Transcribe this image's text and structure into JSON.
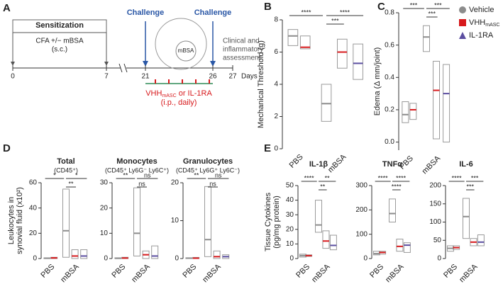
{
  "panel_labels": [
    "A",
    "B",
    "C",
    "D",
    "E"
  ],
  "diagram": {
    "sensitization": "Sensitization",
    "treatment": "CFA +/− mBSA",
    "route": "(s.c.)",
    "challenge": [
      "Challenge",
      "Challenge"
    ],
    "antigen": "mBSA",
    "assessment": [
      "Clinical and",
      "inflammatory",
      "assessment"
    ],
    "days": [
      0,
      7,
      21,
      26,
      27
    ],
    "days_label": "Days",
    "drug": {
      "name": "VHH",
      "sub": "mASC",
      "rest": " or IL-1RA"
    },
    "dosing": "(i.p., daily)"
  },
  "chart_data": [
    {
      "type": "box",
      "ylabel": [
        "Mechanical Threshold (g)"
      ],
      "categories": [
        "PBS",
        "mBSA"
      ],
      "ylim": [
        0,
        8
      ],
      "yticks": [
        0,
        2,
        4,
        6,
        8
      ],
      "series": [
        {
          "color": "#8c8c8c",
          "min": [
            6.4,
            1.7
          ],
          "median": [
            7.0,
            2.8
          ],
          "max": [
            7.4,
            4.0
          ]
        },
        {
          "color": "#d7191c",
          "min": [
            6.2,
            5.0
          ],
          "median": [
            6.3,
            6.0
          ],
          "max": [
            7.0,
            6.8
          ]
        },
        {
          "color": "#5b4ea0",
          "min": [
            null,
            4.3
          ],
          "median": [
            null,
            5.3
          ],
          "max": [
            null,
            6.5
          ]
        }
      ],
      "significance": [
        "****",
        "***",
        "****"
      ]
    },
    {
      "type": "box",
      "ylabel": [
        "Edema (Δ mm/joint)"
      ],
      "categories": [
        "PBS",
        "mBSA"
      ],
      "ylim": [
        -0.05,
        0.8
      ],
      "yticks": [
        {
          "value": 0,
          "label": "0.0"
        },
        0.2,
        0.4,
        0.6,
        0.8
      ],
      "legend": "right",
      "series": [
        {
          "name": "Vehicle",
          "color": "#8c8c8c",
          "min": [
            0.12,
            0.56
          ],
          "median": [
            0.17,
            0.65
          ],
          "max": [
            0.25,
            0.72
          ]
        },
        {
          "name": "VHH",
          "name_sub": "mASC",
          "color": "#d7191c",
          "min": [
            0.14,
            0.02
          ],
          "median": [
            0.2,
            0.32
          ],
          "max": [
            0.24,
            0.5
          ]
        },
        {
          "name": "IL-1RA",
          "color": "#5b4ea0",
          "min": [
            null,
            0.0
          ],
          "median": [
            null,
            0.3
          ],
          "max": [
            null,
            0.48
          ]
        }
      ],
      "significance": [
        "***",
        "***",
        "***"
      ]
    },
    {
      "type": "box",
      "title": "Total",
      "subtitle": "(CD45⁺)",
      "ylabel": [
        "Leukocytes in",
        "synovial fluid (x10²)"
      ],
      "categories": [
        "PBS",
        "mBSA"
      ],
      "ylim": [
        0,
        60
      ],
      "yticks": [
        0,
        20,
        40,
        60
      ],
      "series": [
        {
          "color": "#8c8c8c",
          "min": [
            0,
            1
          ],
          "median": [
            0.3,
            22
          ],
          "max": [
            0.5,
            55
          ]
        },
        {
          "color": "#d7191c",
          "min": [
            0,
            0
          ],
          "median": [
            0.5,
            2
          ],
          "max": [
            1,
            7
          ]
        },
        {
          "color": "#5b4ea0",
          "min": [
            null,
            0
          ],
          "median": [
            null,
            2
          ],
          "max": [
            null,
            7
          ]
        }
      ],
      "significance": [
        "*",
        "**",
        "*"
      ]
    },
    {
      "type": "box",
      "title": "Monocytes",
      "subtitle": "(CD45⁺ Ly6G⁻ Ly6C⁺)",
      "categories": [
        "PBS",
        "mBSA"
      ],
      "ylim": [
        0,
        30
      ],
      "yticks": [
        0,
        10,
        20,
        30
      ],
      "series": [
        {
          "color": "#8c8c8c",
          "min": [
            0,
            1
          ],
          "median": [
            0.1,
            10
          ],
          "max": [
            0.3,
            28
          ]
        },
        {
          "color": "#d7191c",
          "min": [
            0,
            0
          ],
          "median": [
            0.2,
            1.5
          ],
          "max": [
            0.5,
            3
          ]
        },
        {
          "color": "#5b4ea0",
          "min": [
            null,
            0
          ],
          "median": [
            null,
            1
          ],
          "max": [
            null,
            5
          ]
        }
      ],
      "significance": [
        "**",
        "ns",
        "ns"
      ]
    },
    {
      "type": "box",
      "title": "Granulocytes",
      "subtitle": "(CD45⁺ Ly6G⁺ Ly6C⁻)",
      "categories": [
        "PBS",
        "mBSA"
      ],
      "ylim": [
        0,
        20
      ],
      "yticks": [
        0,
        10,
        20
      ],
      "series": [
        {
          "color": "#8c8c8c",
          "min": [
            0,
            0.5
          ],
          "median": [
            0.1,
            5
          ],
          "max": [
            0.2,
            19
          ]
        },
        {
          "color": "#d7191c",
          "min": [
            0,
            0
          ],
          "median": [
            0.1,
            0.5
          ],
          "max": [
            0.3,
            2
          ]
        },
        {
          "color": "#5b4ea0",
          "min": [
            null,
            0
          ],
          "median": [
            null,
            0.5
          ],
          "max": [
            null,
            1
          ]
        }
      ],
      "significance": [
        "**",
        "ns",
        "ns"
      ]
    },
    {
      "type": "box",
      "title": "IL-1β",
      "ylabel": [
        "Tissue Cytokines",
        "(pg/mg protein)"
      ],
      "categories": [
        "PBS",
        "mBSA"
      ],
      "ylim": [
        0,
        50
      ],
      "yticks": [
        0,
        10,
        20,
        30,
        40,
        50
      ],
      "series": [
        {
          "color": "#8c8c8c",
          "min": [
            1,
            18
          ],
          "median": [
            2,
            23
          ],
          "max": [
            3,
            40
          ]
        },
        {
          "color": "#d7191c",
          "min": [
            1.5,
            7
          ],
          "median": [
            2,
            12
          ],
          "max": [
            2.5,
            19
          ]
        },
        {
          "color": "#5b4ea0",
          "min": [
            null,
            6
          ],
          "median": [
            null,
            9
          ],
          "max": [
            null,
            16
          ]
        }
      ],
      "significance": [
        "****",
        "**",
        "**"
      ]
    },
    {
      "type": "box",
      "title": "TNFα",
      "categories": [
        "PBS",
        "mBSA"
      ],
      "ylim": [
        0,
        300
      ],
      "yticks": [
        0,
        100,
        200,
        300
      ],
      "series": [
        {
          "color": "#8c8c8c",
          "min": [
            15,
            150
          ],
          "median": [
            20,
            185
          ],
          "max": [
            30,
            245
          ]
        },
        {
          "color": "#d7191c",
          "min": [
            18,
            30
          ],
          "median": [
            25,
            50
          ],
          "max": [
            30,
            80
          ]
        },
        {
          "color": "#5b4ea0",
          "min": [
            null,
            25
          ],
          "median": [
            null,
            55
          ],
          "max": [
            null,
            65
          ]
        }
      ],
      "significance": [
        "****",
        "****",
        "****"
      ]
    },
    {
      "type": "box",
      "title": "IL-6",
      "categories": [
        "PBS",
        "mBSA"
      ],
      "ylim": [
        0,
        200
      ],
      "yticks": [
        0,
        50,
        100,
        150,
        200
      ],
      "series": [
        {
          "color": "#8c8c8c",
          "min": [
            20,
            55
          ],
          "median": [
            28,
            115
          ],
          "max": [
            35,
            165
          ]
        },
        {
          "color": "#d7191c",
          "min": [
            25,
            35
          ],
          "median": [
            30,
            45
          ],
          "max": [
            35,
            55
          ]
        },
        {
          "color": "#5b4ea0",
          "min": [
            null,
            35
          ],
          "median": [
            null,
            45
          ],
          "max": [
            null,
            65
          ]
        }
      ],
      "significance": [
        "****",
        "***",
        "***"
      ]
    }
  ]
}
